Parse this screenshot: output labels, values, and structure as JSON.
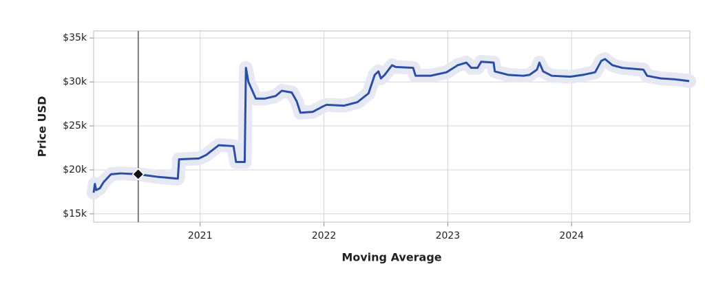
{
  "chart_data": {
    "type": "line",
    "xlabel": "Moving Average",
    "ylabel": "Price USD",
    "color": "#2a4ea6",
    "grid": true,
    "xlim": [
      2020.14,
      2024.955
    ],
    "ylim": [
      14050,
      35800
    ],
    "xticks": [
      2021,
      2022,
      2023,
      2024
    ],
    "yticks": [
      {
        "value": 15000,
        "label": "$15k"
      },
      {
        "value": 20000,
        "label": "$20k"
      },
      {
        "value": 25000,
        "label": "$25k"
      },
      {
        "value": 30000,
        "label": "$30k"
      },
      {
        "value": 35000,
        "label": "$35k"
      }
    ],
    "x": [
      2020.14,
      2020.15,
      2020.16,
      2020.19,
      2020.22,
      2020.28,
      2020.36,
      2020.5,
      2020.66,
      2020.82,
      2020.83,
      2020.99,
      2021.05,
      2021.15,
      2021.27,
      2021.29,
      2021.36,
      2021.37,
      2021.39,
      2021.45,
      2021.52,
      2021.61,
      2021.66,
      2021.74,
      2021.78,
      2021.81,
      2021.91,
      2021.99,
      2022.02,
      2022.16,
      2022.27,
      2022.36,
      2022.41,
      2022.44,
      2022.46,
      2022.49,
      2022.55,
      2022.58,
      2022.72,
      2022.74,
      2022.86,
      2022.99,
      2023.08,
      2023.15,
      2023.19,
      2023.24,
      2023.27,
      2023.37,
      2023.38,
      2023.49,
      2023.61,
      2023.66,
      2023.72,
      2023.74,
      2023.77,
      2023.84,
      2023.99,
      2024.09,
      2024.19,
      2024.24,
      2024.27,
      2024.33,
      2024.41,
      2024.58,
      2024.61,
      2024.72,
      2024.83,
      2024.95
    ],
    "values": [
      17400,
      18400,
      17700,
      17900,
      18600,
      19500,
      19600,
      19500,
      19200,
      19000,
      21200,
      21300,
      21700,
      22800,
      22700,
      20900,
      20900,
      31600,
      30000,
      28100,
      28100,
      28400,
      29000,
      28800,
      27800,
      26500,
      26600,
      27200,
      27400,
      27300,
      27700,
      28700,
      30800,
      31200,
      30400,
      30800,
      31900,
      31700,
      31600,
      30700,
      30700,
      31100,
      31900,
      32200,
      31600,
      31600,
      32300,
      32200,
      31200,
      30800,
      30700,
      30800,
      31400,
      32200,
      31200,
      30700,
      30600,
      30800,
      31100,
      32400,
      32600,
      31900,
      31600,
      31400,
      30700,
      30400,
      30300,
      30100
    ],
    "hover": {
      "x": 2020.5,
      "y": 19500
    }
  }
}
